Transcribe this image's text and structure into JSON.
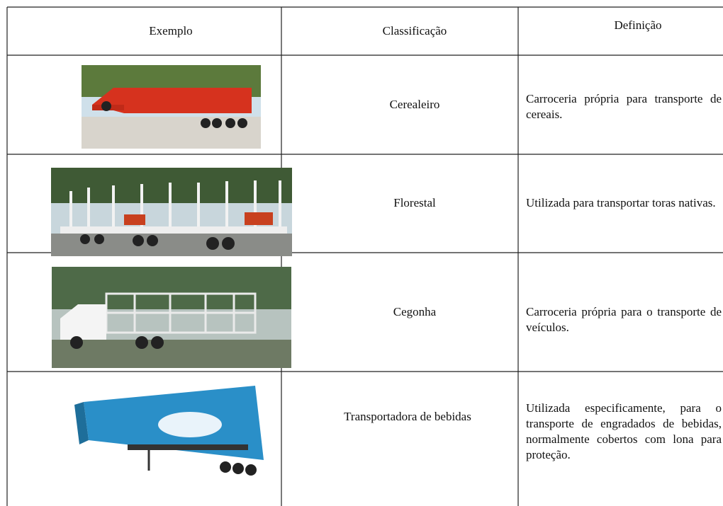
{
  "table": {
    "headers": [
      "Exemplo",
      "Classificação",
      "Definição"
    ],
    "rows": [
      {
        "classification": "Cerealeiro",
        "definition": "Carroceria própria para transporte de cereais."
      },
      {
        "classification": "Florestal",
        "definition": "Utilizada para transportar toras nativas."
      },
      {
        "classification": "Cegonha",
        "definition": "Carroceria própria para o transporte de veículos."
      },
      {
        "classification": "Transportadora de bebidas",
        "definition": "Utilizada especificamente, para o transporte de engradados de bebidas, normalmente cobertos com lona para proteção."
      }
    ]
  }
}
